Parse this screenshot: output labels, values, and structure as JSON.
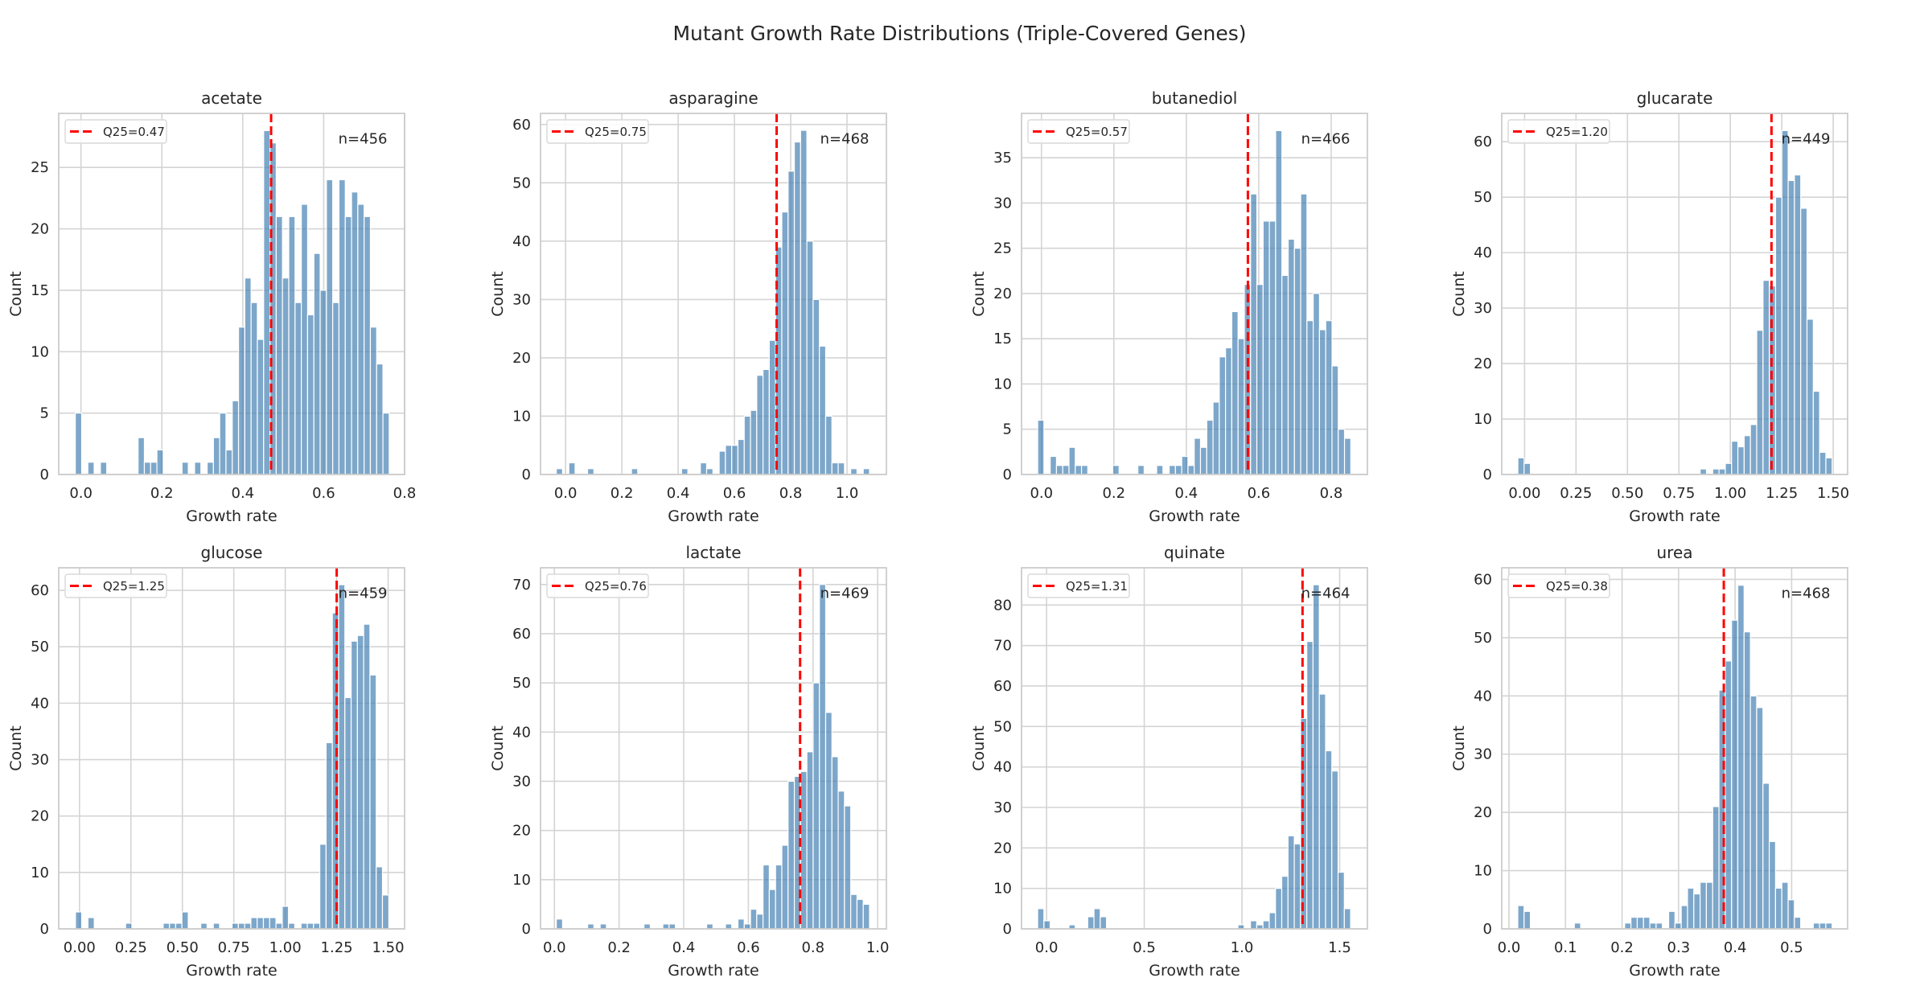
{
  "figure_title": "Mutant Growth Rate Distributions (Triple-Covered Genes)",
  "colors": {
    "bar": "#4682b4",
    "bar_edge": "#ffffff",
    "q25_line": "#ff0000",
    "grid": "#d4d4d4",
    "background": "#ffffff"
  },
  "chart_data": [
    {
      "type": "bar",
      "title": "acetate",
      "xlabel": "Growth rate",
      "ylabel": "Count",
      "bin_start": -0.014,
      "bin_width": 0.01552,
      "counts": [
        5,
        0,
        1,
        0,
        1,
        0,
        0,
        0,
        0,
        0,
        3,
        1,
        1,
        2,
        0,
        0,
        0,
        1,
        0,
        1,
        0,
        1,
        3,
        5,
        2,
        6,
        12,
        16,
        14,
        11,
        28,
        27,
        21,
        16,
        21,
        14,
        22,
        13,
        18,
        15,
        24,
        14,
        24,
        21,
        23,
        22,
        21,
        12,
        9,
        5
      ],
      "xlim": [
        -0.055,
        0.8
      ],
      "ylim": [
        0,
        29.4
      ],
      "xticks": [
        0,
        0.2,
        0.4,
        0.6,
        0.8
      ],
      "xtick_labels": [
        "0.0",
        "0.2",
        "0.4",
        "0.6",
        "0.8"
      ],
      "yticks": [
        0,
        5,
        10,
        15,
        20,
        25
      ],
      "ytick_labels": [
        "0",
        "5",
        "10",
        "15",
        "20",
        "25"
      ],
      "q25": 0.47,
      "legend_label": "Q25=0.47",
      "annotation": "n=456",
      "grid": true,
      "legend_position": "upper left"
    },
    {
      "type": "bar",
      "title": "asparagine",
      "xlabel": "Growth rate",
      "ylabel": "Count",
      "bin_start": -0.033,
      "bin_width": 0.02226,
      "counts": [
        1,
        0,
        2,
        0,
        0,
        1,
        0,
        0,
        0,
        0,
        0,
        0,
        1,
        0,
        0,
        0,
        0,
        0,
        0,
        0,
        1,
        0,
        0,
        2,
        1,
        0,
        4,
        5,
        5,
        6,
        10,
        11,
        17,
        18,
        23,
        39,
        45,
        52,
        57,
        59,
        40,
        30,
        22,
        10,
        2,
        2,
        0,
        1,
        0,
        1
      ],
      "xlim": [
        -0.089,
        1.14
      ],
      "ylim": [
        0,
        61.9
      ],
      "xticks": [
        0,
        0.2,
        0.4,
        0.6,
        0.8,
        1.0
      ],
      "xtick_labels": [
        "0.0",
        "0.2",
        "0.4",
        "0.6",
        "0.8",
        "1.0"
      ],
      "yticks": [
        0,
        10,
        20,
        30,
        40,
        50,
        60
      ],
      "ytick_labels": [
        "0",
        "10",
        "20",
        "30",
        "40",
        "50",
        "60"
      ],
      "q25": 0.75,
      "legend_label": "Q25=0.75",
      "annotation": "n=468",
      "grid": true,
      "legend_position": "upper left"
    },
    {
      "type": "bar",
      "title": "butanediol",
      "xlabel": "Growth rate",
      "ylabel": "Count",
      "bin_start": -0.0104,
      "bin_width": 0.01729,
      "counts": [
        6,
        0,
        2,
        1,
        1,
        3,
        1,
        1,
        0,
        0,
        0,
        0,
        1,
        0,
        0,
        0,
        1,
        0,
        0,
        1,
        0,
        1,
        1,
        2,
        1,
        4,
        3,
        6,
        8,
        13,
        14,
        18,
        15,
        21,
        31,
        21,
        28,
        28,
        38,
        22,
        26,
        25,
        31,
        17,
        20,
        16,
        17,
        12,
        5,
        4
      ],
      "xlim": [
        -0.055,
        0.9
      ],
      "ylim": [
        0,
        39.9
      ],
      "xticks": [
        0,
        0.2,
        0.4,
        0.6,
        0.8
      ],
      "xtick_labels": [
        "0.0",
        "0.2",
        "0.4",
        "0.6",
        "0.8"
      ],
      "yticks": [
        0,
        5,
        10,
        15,
        20,
        25,
        30,
        35
      ],
      "ytick_labels": [
        "0",
        "5",
        "10",
        "15",
        "20",
        "25",
        "30",
        "35"
      ],
      "q25": 0.57,
      "legend_label": "Q25=0.57",
      "annotation": "n=466",
      "grid": true,
      "legend_position": "upper left"
    },
    {
      "type": "bar",
      "title": "glucarate",
      "xlabel": "Growth rate",
      "ylabel": "Count",
      "bin_start": -0.0326,
      "bin_width": 0.03055,
      "counts": [
        3,
        2,
        0,
        0,
        0,
        0,
        0,
        0,
        0,
        0,
        0,
        0,
        0,
        0,
        0,
        0,
        0,
        0,
        0,
        0,
        0,
        0,
        0,
        0,
        0,
        0,
        0,
        0,
        0,
        1,
        0,
        1,
        1,
        2,
        6,
        5,
        7,
        9,
        26,
        35,
        34,
        50,
        62,
        53,
        54,
        48,
        28,
        15,
        4,
        3
      ],
      "xlim": [
        -0.111,
        1.57
      ],
      "ylim": [
        0,
        65.1
      ],
      "xticks": [
        0,
        0.25,
        0.5,
        0.75,
        1.0,
        1.25,
        1.5
      ],
      "xtick_labels": [
        "0.00",
        "0.25",
        "0.50",
        "0.75",
        "1.00",
        "1.25",
        "1.50"
      ],
      "yticks": [
        0,
        10,
        20,
        30,
        40,
        50,
        60
      ],
      "ytick_labels": [
        "0",
        "10",
        "20",
        "30",
        "40",
        "50",
        "60"
      ],
      "q25": 1.2,
      "legend_label": "Q25=1.20",
      "annotation": "n=449",
      "grid": true,
      "legend_position": "upper left"
    },
    {
      "type": "bar",
      "title": "glucose",
      "xlabel": "Growth rate",
      "ylabel": "Count",
      "bin_start": -0.0196,
      "bin_width": 0.03045,
      "counts": [
        3,
        0,
        2,
        0,
        0,
        0,
        0,
        0,
        1,
        0,
        0,
        0,
        0,
        0,
        1,
        1,
        1,
        3,
        0,
        0,
        1,
        0,
        1,
        0,
        0,
        1,
        1,
        1,
        2,
        2,
        2,
        2,
        1,
        4,
        1,
        0,
        1,
        1,
        1,
        15,
        33,
        56,
        61,
        41,
        51,
        52,
        54,
        45,
        11,
        6
      ],
      "xlim": [
        -0.101,
        1.58
      ],
      "ylim": [
        0,
        64.0
      ],
      "xticks": [
        0,
        0.25,
        0.5,
        0.75,
        1.0,
        1.25,
        1.5
      ],
      "xtick_labels": [
        "0.00",
        "0.25",
        "0.50",
        "0.75",
        "1.00",
        "1.25",
        "1.50"
      ],
      "yticks": [
        0,
        10,
        20,
        30,
        40,
        50,
        60
      ],
      "ytick_labels": [
        "0",
        "10",
        "20",
        "30",
        "40",
        "50",
        "60"
      ],
      "q25": 1.25,
      "legend_label": "Q25=1.25",
      "annotation": "n=459",
      "grid": true,
      "legend_position": "upper left"
    },
    {
      "type": "bar",
      "title": "lactate",
      "xlabel": "Growth rate",
      "ylabel": "Count",
      "bin_start": 0.0058,
      "bin_width": 0.01938,
      "counts": [
        2,
        0,
        0,
        0,
        0,
        1,
        0,
        1,
        0,
        0,
        0,
        0,
        0,
        0,
        1,
        0,
        0,
        1,
        1,
        0,
        0,
        0,
        0,
        0,
        1,
        0,
        0,
        1,
        0,
        2,
        1,
        4,
        3,
        13,
        8,
        13,
        17,
        30,
        31,
        32,
        36,
        50,
        70,
        44,
        35,
        28,
        25,
        7,
        6,
        5
      ],
      "xlim": [
        -0.043,
        1.027
      ],
      "ylim": [
        0,
        73.4
      ],
      "xticks": [
        0,
        0.2,
        0.4,
        0.6,
        0.8,
        1.0
      ],
      "xtick_labels": [
        "0.0",
        "0.2",
        "0.4",
        "0.6",
        "0.8",
        "1.0"
      ],
      "yticks": [
        0,
        10,
        20,
        30,
        40,
        50,
        60,
        70
      ],
      "ytick_labels": [
        "0",
        "10",
        "20",
        "30",
        "40",
        "50",
        "60",
        "70"
      ],
      "q25": 0.76,
      "legend_label": "Q25=0.76",
      "annotation": "n=469",
      "grid": true,
      "legend_position": "upper left"
    },
    {
      "type": "bar",
      "title": "quinate",
      "xlabel": "Growth rate",
      "ylabel": "Count",
      "bin_start": -0.0455,
      "bin_width": 0.03203,
      "counts": [
        5,
        2,
        0,
        0,
        0,
        1,
        0,
        0,
        3,
        5,
        3,
        0,
        0,
        0,
        0,
        0,
        0,
        0,
        0,
        0,
        0,
        0,
        0,
        0,
        0,
        0,
        0,
        0,
        0,
        0,
        0,
        0,
        1,
        0,
        2,
        1,
        2,
        4,
        10,
        13,
        23,
        21,
        52,
        71,
        85,
        58,
        44,
        39,
        14,
        5
      ],
      "xlim": [
        -0.128,
        1.642
      ],
      "ylim": [
        0,
        89.2
      ],
      "xticks": [
        0,
        0.5,
        1.0,
        1.5
      ],
      "xtick_labels": [
        "0.0",
        "0.5",
        "1.0",
        "1.5"
      ],
      "yticks": [
        0,
        10,
        20,
        30,
        40,
        50,
        60,
        70,
        80
      ],
      "ytick_labels": [
        "0",
        "10",
        "20",
        "30",
        "40",
        "50",
        "60",
        "70",
        "80"
      ],
      "q25": 1.31,
      "legend_label": "Q25=1.31",
      "annotation": "n=464",
      "grid": true,
      "legend_position": "upper left"
    },
    {
      "type": "bar",
      "title": "urea",
      "xlabel": "Growth rate",
      "ylabel": "Count",
      "bin_start": 0.0156,
      "bin_width": 0.01112,
      "counts": [
        4,
        3,
        0,
        0,
        0,
        0,
        0,
        0,
        0,
        1,
        0,
        0,
        0,
        0,
        0,
        0,
        0,
        1,
        2,
        2,
        2,
        1,
        1,
        0,
        3,
        1,
        4,
        7,
        6,
        8,
        8,
        21,
        41,
        46,
        53,
        59,
        51,
        40,
        38,
        25,
        15,
        7,
        8,
        5,
        2,
        0,
        0,
        1,
        1,
        1
      ],
      "xlim": [
        -0.0128,
        0.599
      ],
      "ylim": [
        0,
        62.0
      ],
      "xticks": [
        0,
        0.1,
        0.2,
        0.3,
        0.4,
        0.5
      ],
      "xtick_labels": [
        "0.0",
        "0.1",
        "0.2",
        "0.3",
        "0.4",
        "0.5"
      ],
      "yticks": [
        0,
        10,
        20,
        30,
        40,
        50,
        60
      ],
      "ytick_labels": [
        "0",
        "10",
        "20",
        "30",
        "40",
        "50",
        "60"
      ],
      "q25": 0.38,
      "legend_label": "Q25=0.38",
      "annotation": "n=468",
      "grid": true,
      "legend_position": "upper left"
    }
  ]
}
